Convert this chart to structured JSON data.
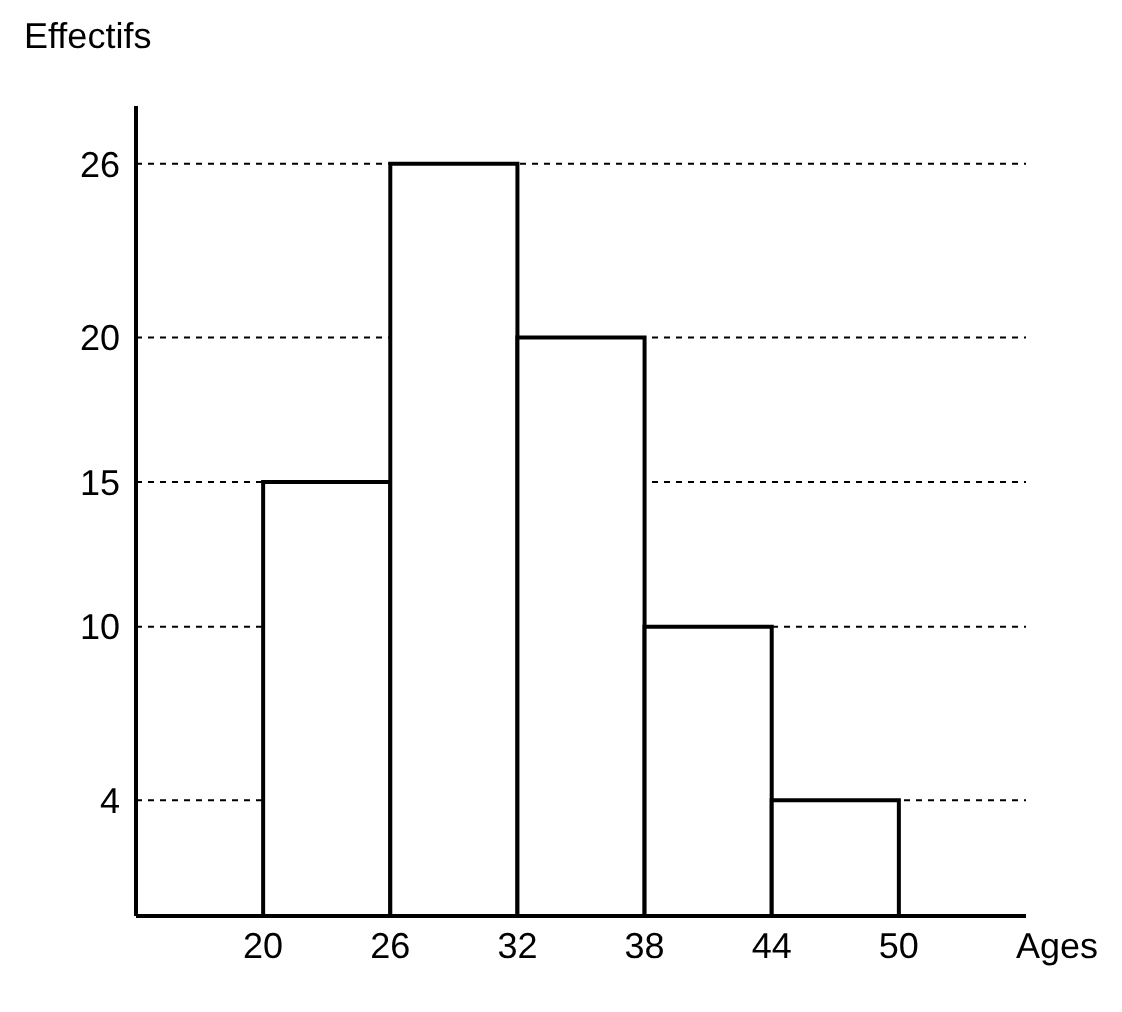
{
  "chart_data": {
    "type": "histogram",
    "xlabel": "Ages",
    "ylabel": "Effectifs",
    "bins": [
      20,
      26,
      32,
      38,
      44,
      50
    ],
    "values": [
      15,
      26,
      20,
      10,
      4
    ],
    "color": "#ffffff",
    "xlim": [
      14,
      56
    ],
    "ylim": [
      0,
      28
    ],
    "xticks": [
      20,
      26,
      32,
      38,
      44,
      50
    ],
    "yticks": [
      4,
      10,
      15,
      20,
      26
    ],
    "grid": "y"
  }
}
